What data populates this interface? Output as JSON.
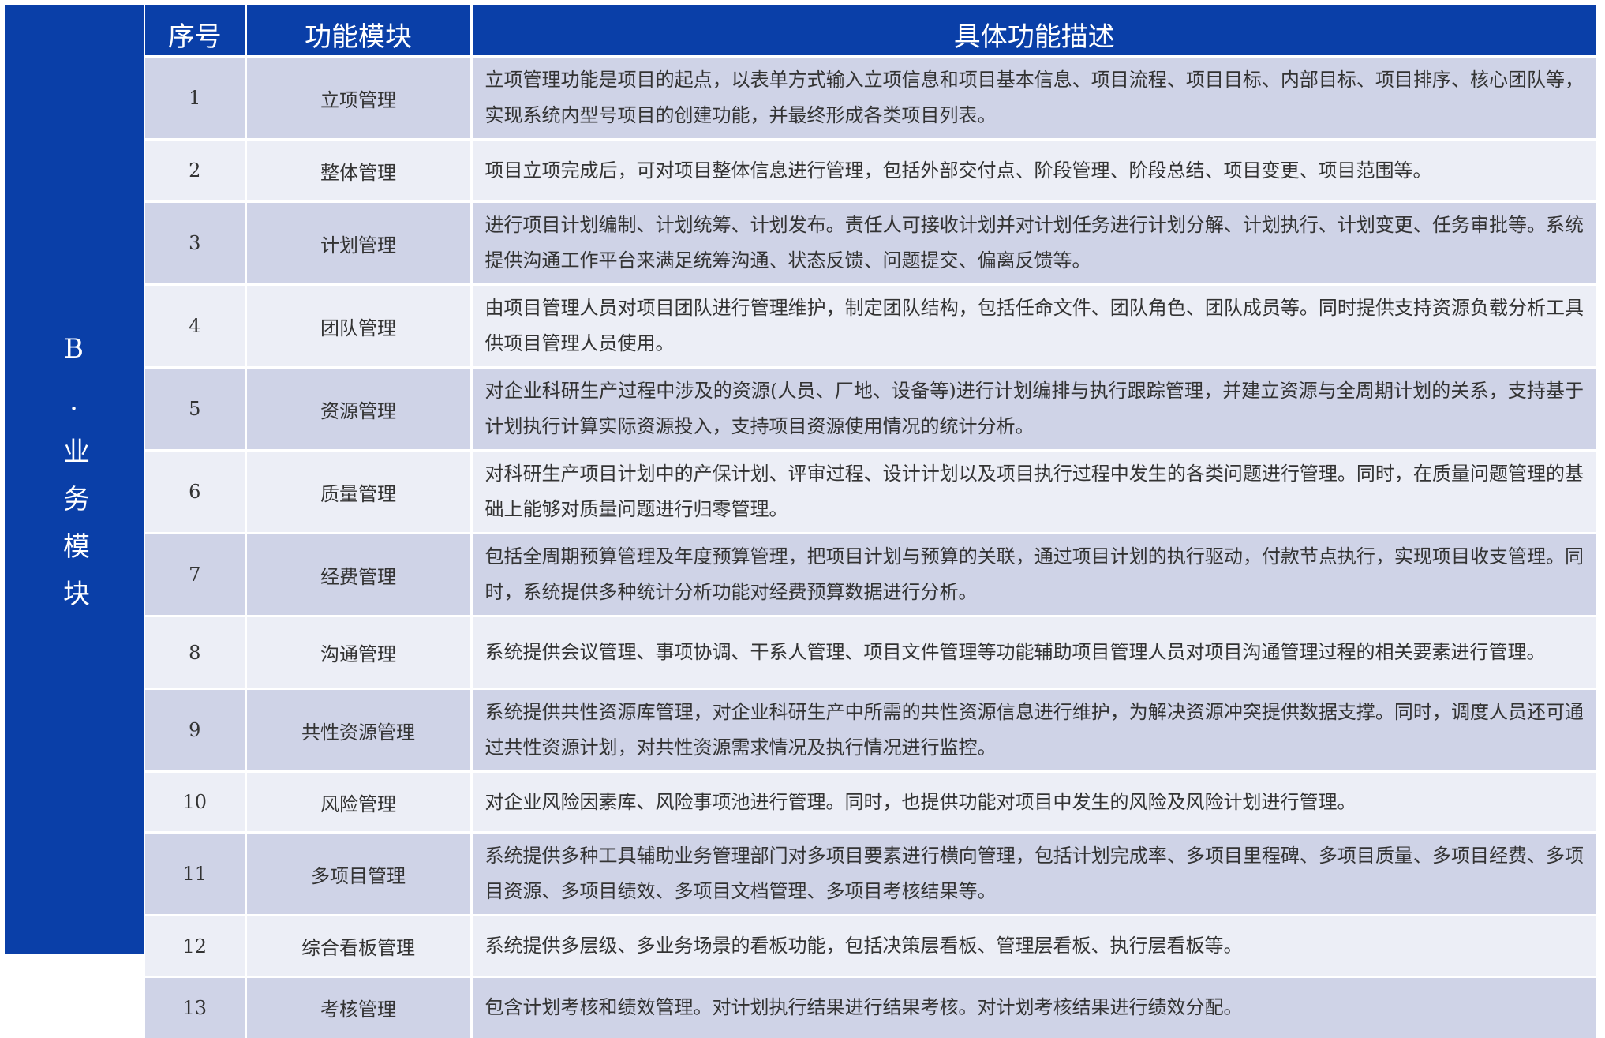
{
  "side_label": "B.业务模块",
  "table": {
    "headers": [
      "序号",
      "功能模块",
      "具体功能描述"
    ],
    "rows": [
      [
        "1",
        "立项管理",
        "立项管理功能是项目的起点，以表单方式输入立项信息和项目基本信息、项目流程、项目目标、内部目标、项目排序、核心团队等，实现系统内型号项目的创建功能，并最终形成各类项目列表。"
      ],
      [
        "2",
        "整体管理",
        "项目立项完成后，可对项目整体信息进行管理，包括外部交付点、阶段管理、阶段总结、项目变更、项目范围等。"
      ],
      [
        "3",
        "计划管理",
        "进行项目计划编制、计划统筹、计划发布。责任人可接收计划并对计划任务进行计划分解、计划执行、计划变更、任务审批等。系统提供沟通工作平台来满足统筹沟通、状态反馈、问题提交、偏离反馈等。"
      ],
      [
        "4",
        "团队管理",
        "由项目管理人员对项目团队进行管理维护，制定团队结构，包括任命文件、团队角色、团队成员等。同时提供支持资源负载分析工具供项目管理人员使用。"
      ],
      [
        "5",
        "资源管理",
        "对企业科研生产过程中涉及的资源(人员、厂地、设备等)进行计划编排与执行跟踪管理，并建立资源与全周期计划的关系，支持基于计划执行计算实际资源投入，支持项目资源使用情况的统计分析。"
      ],
      [
        "6",
        "质量管理",
        "对科研生产项目计划中的产保计划、评审过程、设计计划以及项目执行过程中发生的各类问题进行管理。同时，在质量问题管理的基础上能够对质量问题进行归零管理。"
      ],
      [
        "7",
        "经费管理",
        "包括全周期预算管理及年度预算管理，把项目计划与预算的关联，通过项目计划的执行驱动，付款节点执行，实现项目收支管理。同时，系统提供多种统计分析功能对经费预算数据进行分析。"
      ],
      [
        "8",
        "沟通管理",
        "系统提供会议管理、事项协调、干系人管理、项目文件管理等功能辅助项目管理人员对项目沟通管理过程的相关要素进行管理。"
      ],
      [
        "9",
        "共性资源管理",
        "系统提供共性资源库管理，对企业科研生产中所需的共性资源信息进行维护，为解决资源冲突提供数据支撑。同时，调度人员还可通过共性资源计划，对共性资源需求情况及执行情况进行监控。"
      ],
      [
        "10",
        "风险管理",
        "对企业风险因素库、风险事项池进行管理。同时，也提供功能对项目中发生的风险及风险计划进行管理。"
      ],
      [
        "11",
        "多项目管理",
        "系统提供多种工具辅助业务管理部门对多项目要素进行横向管理，包括计划完成率、多项目里程碑、多项目质量、多项目经费、多项目资源、多项目绩效、多项目文档管理、多项目考核结果等。"
      ],
      [
        "12",
        "综合看板管理",
        "系统提供多层级、多业务场景的看板功能，包括决策层看板、管理层看板、执行层看板等。"
      ],
      [
        "13",
        "考核管理",
        "包含计划考核和绩效管理。对计划执行结果进行结果考核。对计划考核结果进行绩效分配。"
      ]
    ]
  }
}
